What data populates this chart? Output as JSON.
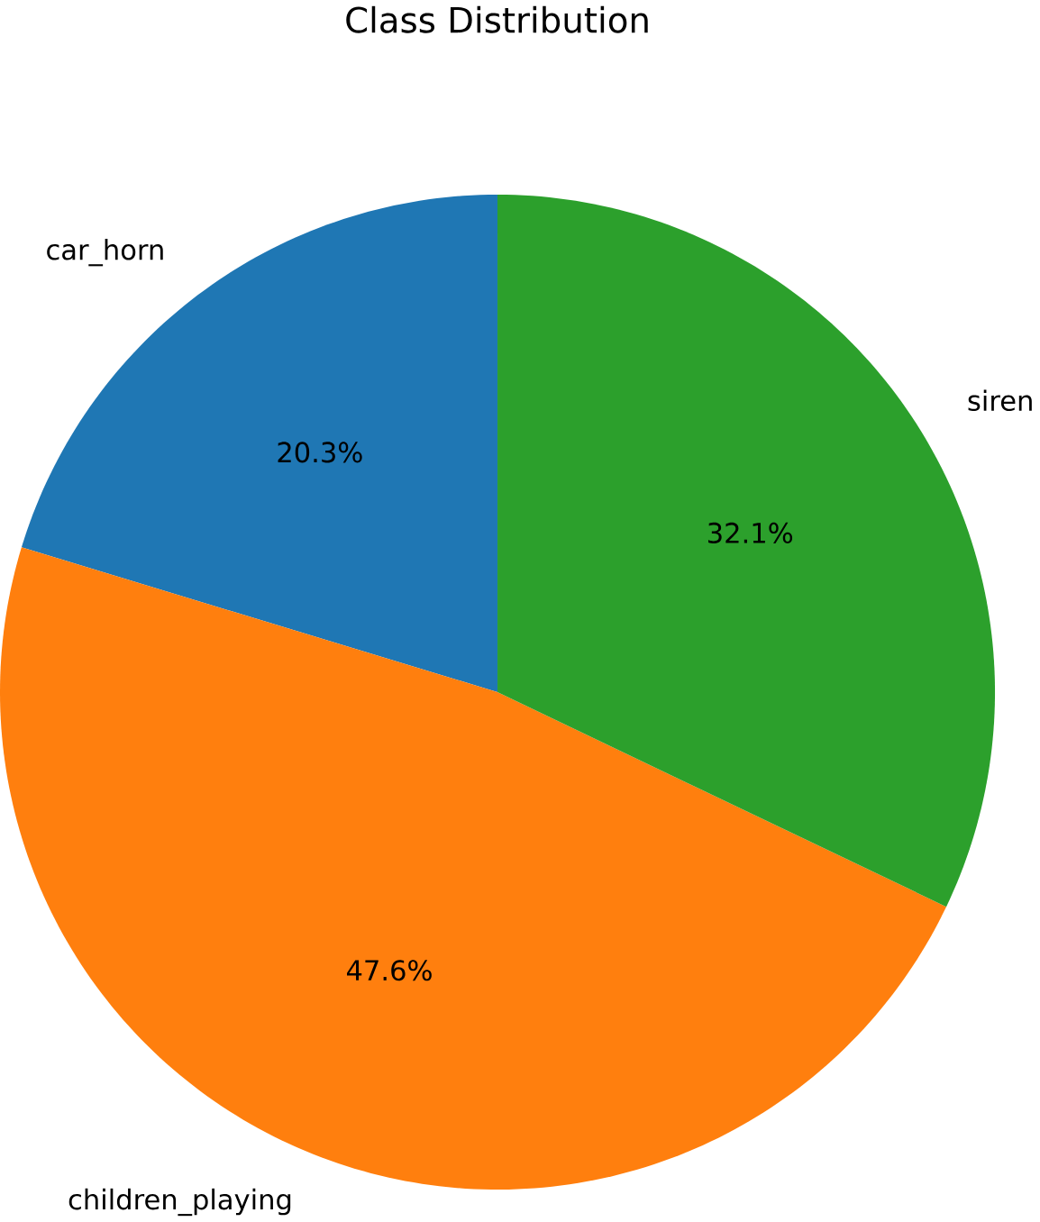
{
  "chart_data": {
    "type": "pie",
    "title": "Class Distribution",
    "categories": [
      "car_horn",
      "children_playing",
      "siren"
    ],
    "values": [
      20.3,
      47.6,
      32.1
    ],
    "value_labels": [
      "20.3%",
      "47.6%",
      "32.1%"
    ],
    "colors": [
      "#1f77b4",
      "#ff7f0e",
      "#2ca02c"
    ]
  }
}
